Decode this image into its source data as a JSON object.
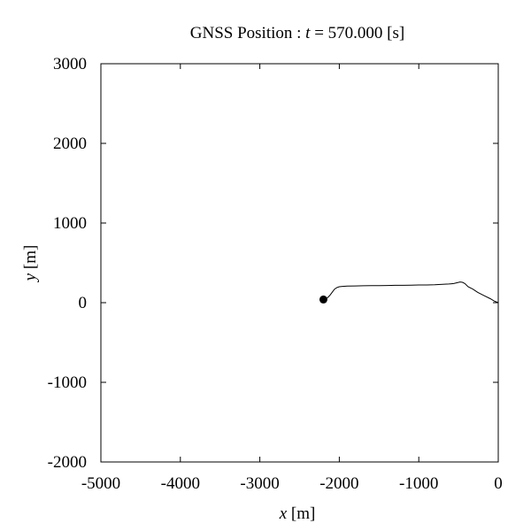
{
  "chart_data": {
    "type": "line",
    "title": {
      "prefix": "GNSS Position : ",
      "var": "t",
      "suffix": " = 570.000 [s]"
    },
    "xlabel": {
      "var": "x",
      "unit": " [m]"
    },
    "ylabel": {
      "var": "y",
      "unit": " [m]"
    },
    "xlim": [
      -5000,
      0
    ],
    "ylim": [
      -2000,
      3000
    ],
    "xticks": [
      -5000,
      -4000,
      -3000,
      -2000,
      -1000,
      0
    ],
    "yticks": [
      -2000,
      -1000,
      0,
      1000,
      2000,
      3000
    ],
    "xtick_labels": [
      "-5000",
      "-4000",
      "-3000",
      "-2000",
      "-1000",
      "0"
    ],
    "ytick_labels": [
      "-2000",
      "-1000",
      "0",
      "1000",
      "2000",
      "3000"
    ],
    "grid": false,
    "series": [
      {
        "x": [
          0,
          -50,
          -100,
          -180,
          -260,
          -320,
          -380,
          -420,
          -450,
          -480,
          -520,
          -560,
          -620,
          -700,
          -800,
          -900,
          -1000,
          -1100,
          -1200,
          -1300,
          -1400,
          -1500,
          -1600,
          -1700,
          -1800,
          -1900,
          -1960,
          -2000,
          -2030,
          -2060,
          -2090,
          -2120,
          -2150,
          -2180,
          -2200
        ],
        "y": [
          0,
          20,
          50,
          90,
          130,
          170,
          200,
          240,
          255,
          260,
          250,
          240,
          235,
          230,
          225,
          222,
          222,
          220,
          218,
          218,
          216,
          214,
          213,
          212,
          210,
          208,
          205,
          200,
          190,
          170,
          130,
          90,
          60,
          45,
          40
        ],
        "color": "#000000"
      }
    ],
    "current_position": {
      "x": -2200,
      "y": 40
    }
  }
}
